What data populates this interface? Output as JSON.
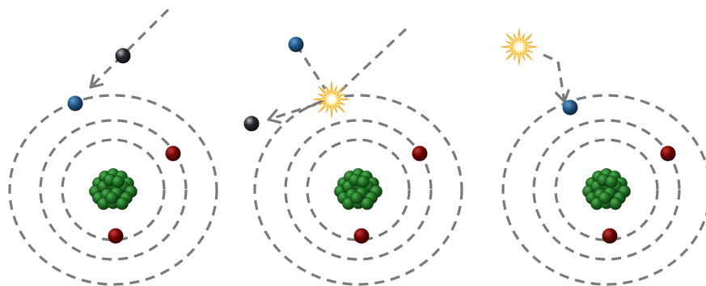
{
  "figure": {
    "panel_count": 3,
    "colors": {
      "orbit": "#7a7a7a",
      "nucleus": "#1f6b24",
      "bound_electron": "#6a0000",
      "incoming_electron": "#1f4f7a",
      "ejected_particle": "#2b2b33",
      "photon_flash": "#ffcf4a"
    },
    "icons": [
      "nucleus-icon",
      "electron-icon",
      "incident-particle-icon",
      "photon-flash-icon"
    ]
  }
}
